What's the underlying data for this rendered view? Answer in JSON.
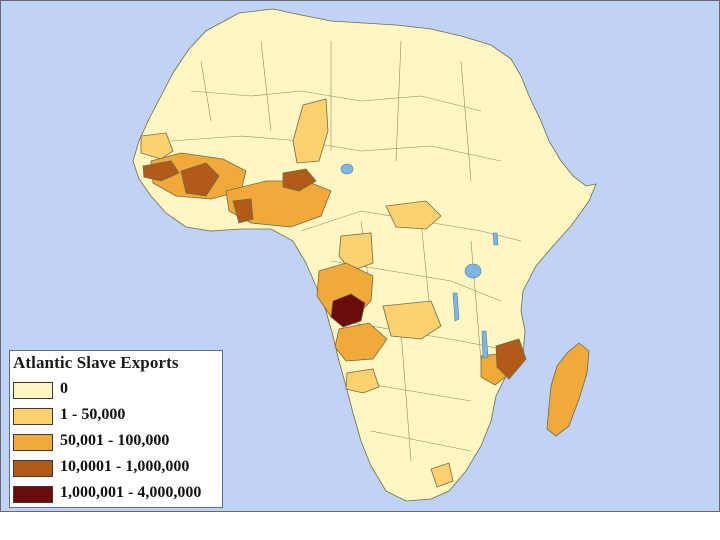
{
  "legend": {
    "title": "Atlantic Slave Exports",
    "items": [
      {
        "label": "0",
        "color": "#fff6c2"
      },
      {
        "label": "1 - 50,000",
        "color": "#fcd16e"
      },
      {
        "label": "50,001 - 100,000",
        "color": "#f1a93a"
      },
      {
        "label": "10,0001 - 1,000,000",
        "color": "#b25b19"
      },
      {
        "label": "1,000,001 - 4,000,000",
        "color": "#6b0b0b"
      }
    ]
  },
  "colors": {
    "ocean": "#c0d3f5",
    "land": "#fff6c2",
    "lake": "#7fb6e6",
    "border": "#6b6b4c"
  }
}
